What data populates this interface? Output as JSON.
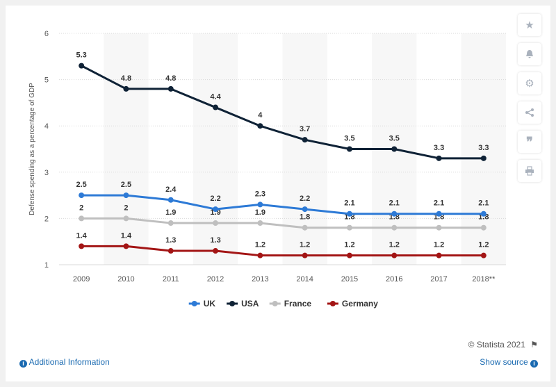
{
  "colors": {
    "UK": "#2d7ad6",
    "USA": "#0f2236",
    "France": "#bfbfbf",
    "Germany": "#a31515"
  },
  "chart_data": {
    "type": "line",
    "title": "",
    "xlabel": "",
    "ylabel": "Defense spending as a percentage of GDP",
    "categories": [
      "2009",
      "2010",
      "2011",
      "2012",
      "2013",
      "2014",
      "2015",
      "2016",
      "2017",
      "2018**"
    ],
    "ylim": [
      1,
      6
    ],
    "yticks": [
      "1",
      "2",
      "3",
      "4",
      "5",
      "6"
    ],
    "grid": true,
    "legend": "bottom",
    "series": [
      {
        "name": "UK",
        "values": [
          2.5,
          2.5,
          2.4,
          2.2,
          2.3,
          2.2,
          2.1,
          2.1,
          2.1,
          2.1
        ]
      },
      {
        "name": "USA",
        "values": [
          5.3,
          4.8,
          4.8,
          4.4,
          4.0,
          3.7,
          3.5,
          3.5,
          3.3,
          3.3
        ]
      },
      {
        "name": "France",
        "values": [
          2.0,
          2.0,
          1.9,
          1.9,
          1.9,
          1.8,
          1.8,
          1.8,
          1.8,
          1.8
        ]
      },
      {
        "name": "Germany",
        "values": [
          1.4,
          1.4,
          1.3,
          1.3,
          1.2,
          1.2,
          1.2,
          1.2,
          1.2,
          1.2
        ]
      }
    ],
    "data_labels": {
      "UK": [
        "2.5",
        "2.5",
        "2.4",
        "2.2",
        "2.3",
        "2.2",
        "2.1",
        "2.1",
        "2.1",
        "2.1"
      ],
      "USA": [
        "5.3",
        "4.8",
        "4.8",
        "4.4",
        "4",
        "3.7",
        "3.5",
        "3.5",
        "3.3",
        "3.3"
      ],
      "France": [
        "2",
        "2",
        "1.9",
        "1.9",
        "1.9",
        "1.8",
        "1.8",
        "1.8",
        "1.8",
        "1.8"
      ],
      "Germany": [
        "1.4",
        "1.4",
        "1.3",
        "1.3",
        "1.2",
        "1.2",
        "1.2",
        "1.2",
        "1.2",
        "1.2"
      ]
    }
  },
  "toolbar": {
    "icons": [
      "star-icon",
      "bell-icon",
      "gear-icon",
      "share-icon",
      "quote-icon",
      "print-icon"
    ]
  },
  "footer": {
    "credit": "© Statista 2021",
    "additional_info": "Additional Information",
    "show_source": "Show source"
  }
}
